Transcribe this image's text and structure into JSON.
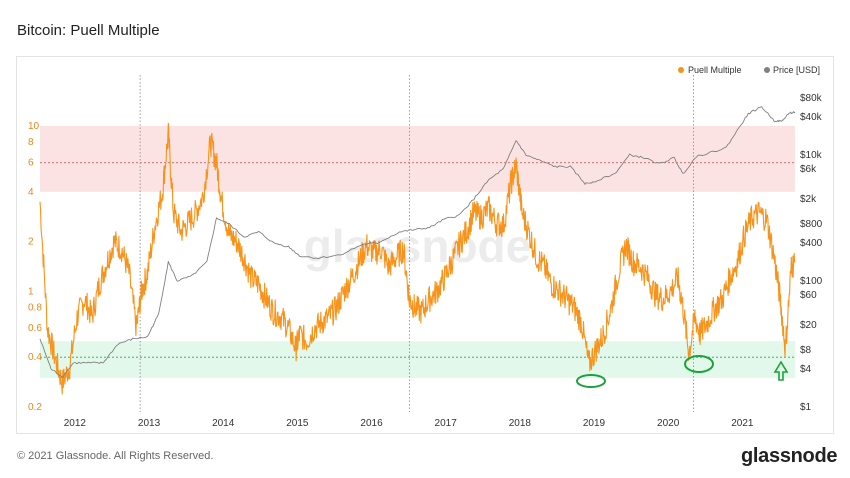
{
  "header": {
    "title": "Bitcoin: Puell Multiple"
  },
  "footer": {
    "copyright": "© 2021 Glassnode. All Rights Reserved.",
    "brand": "glassnode"
  },
  "watermark": "glassnode",
  "colors": {
    "puell": "#f7931a",
    "price": "#808080",
    "top_band": "#fbd9d9",
    "bottom_band": "#d8f5e3",
    "marker": "#1aa33a"
  },
  "chart_data": {
    "type": "line",
    "x_range": [
      2011.55,
      2021.73
    ],
    "xticks": [
      "2012",
      "2013",
      "2014",
      "2015",
      "2016",
      "2017",
      "2018",
      "2019",
      "2020",
      "2021"
    ],
    "y_left_ticks": [
      "10",
      "8",
      "6",
      "4",
      "2",
      "1",
      "0.8",
      "0.6",
      "0.4",
      "0.2"
    ],
    "y_left_scale": "log",
    "y_left_range": [
      0.2,
      10
    ],
    "y_right_ticks": [
      "$80k",
      "$40k",
      "$10k",
      "$6k",
      "$2k",
      "$800",
      "$400",
      "$100",
      "$60",
      "$20",
      "$8",
      "$4",
      "$1"
    ],
    "y_right_scale": "log",
    "y_right_range": [
      1,
      80000
    ],
    "legend": [
      {
        "name": "Puell Multiple",
        "color": "#f7931a"
      },
      {
        "name": "Price [USD]",
        "color": "#808080"
      }
    ],
    "legend_position": "top-right",
    "bands": [
      {
        "name": "top",
        "from": 4,
        "to": 10,
        "color": "#fbd9d9"
      },
      {
        "name": "bottom",
        "from": 0.3,
        "to": 0.5,
        "color": "#d8f5e3"
      }
    ],
    "reference_lines": [
      6,
      0.4
    ],
    "halving_lines": [
      2012.9,
      2016.53,
      2020.36
    ],
    "series": [
      {
        "name": "Puell Multiple",
        "x": [
          2011.55,
          2011.65,
          2011.75,
          2011.85,
          2011.95,
          2012.05,
          2012.15,
          2012.25,
          2012.35,
          2012.45,
          2012.55,
          2012.65,
          2012.75,
          2012.85,
          2012.92,
          2013.0,
          2013.1,
          2013.2,
          2013.28,
          2013.35,
          2013.45,
          2013.55,
          2013.65,
          2013.75,
          2013.85,
          2013.93,
          2014.0,
          2014.1,
          2014.2,
          2014.3,
          2014.4,
          2014.5,
          2014.6,
          2014.7,
          2014.8,
          2014.9,
          2015.0,
          2015.05,
          2015.15,
          2015.25,
          2015.35,
          2015.45,
          2015.55,
          2015.65,
          2015.75,
          2015.85,
          2015.95,
          2016.05,
          2016.15,
          2016.25,
          2016.35,
          2016.45,
          2016.53,
          2016.6,
          2016.7,
          2016.8,
          2016.9,
          2017.0,
          2017.1,
          2017.2,
          2017.3,
          2017.4,
          2017.5,
          2017.6,
          2017.7,
          2017.8,
          2017.9,
          2017.97,
          2018.05,
          2018.15,
          2018.25,
          2018.35,
          2018.45,
          2018.55,
          2018.65,
          2018.75,
          2018.85,
          2018.95,
          2019.05,
          2019.15,
          2019.25,
          2019.35,
          2019.45,
          2019.55,
          2019.65,
          2019.75,
          2019.85,
          2019.95,
          2020.05,
          2020.15,
          2020.22,
          2020.3,
          2020.38,
          2020.45,
          2020.55,
          2020.65,
          2020.75,
          2020.85,
          2020.95,
          2021.05,
          2021.15,
          2021.25,
          2021.35,
          2021.45,
          2021.53,
          2021.6,
          2021.68,
          2021.73
        ],
        "values": [
          3.5,
          0.6,
          0.4,
          0.28,
          0.35,
          0.7,
          0.9,
          0.7,
          1.1,
          1.5,
          2.0,
          1.8,
          1.3,
          0.6,
          1.0,
          1.3,
          2.5,
          4.0,
          9.0,
          3.0,
          2.3,
          2.6,
          3.0,
          3.8,
          8.0,
          6.0,
          3.5,
          2.2,
          2.0,
          1.6,
          1.2,
          1.1,
          0.9,
          0.75,
          0.7,
          0.6,
          0.45,
          0.55,
          0.5,
          0.6,
          0.65,
          0.7,
          0.8,
          1.0,
          1.2,
          1.5,
          1.9,
          1.7,
          1.8,
          1.4,
          1.6,
          1.8,
          0.9,
          0.8,
          0.75,
          0.9,
          1.0,
          1.2,
          1.5,
          1.9,
          2.3,
          3.0,
          2.8,
          3.2,
          2.6,
          2.5,
          4.5,
          5.8,
          3.0,
          2.2,
          1.6,
          1.4,
          1.1,
          1.0,
          0.9,
          0.8,
          0.65,
          0.36,
          0.45,
          0.55,
          0.8,
          1.3,
          1.9,
          1.5,
          1.4,
          1.2,
          0.95,
          0.9,
          1.0,
          1.2,
          0.8,
          0.42,
          0.7,
          0.55,
          0.65,
          0.8,
          0.9,
          1.2,
          1.5,
          2.2,
          2.8,
          3.0,
          2.7,
          1.6,
          0.9,
          0.45,
          1.4,
          1.5
        ]
      },
      {
        "name": "Price [USD]",
        "x": [
          2011.55,
          2011.7,
          2011.85,
          2012.0,
          2012.2,
          2012.4,
          2012.6,
          2012.8,
          2013.0,
          2013.15,
          2013.28,
          2013.4,
          2013.6,
          2013.8,
          2013.93,
          2014.1,
          2014.3,
          2014.5,
          2014.7,
          2014.9,
          2015.05,
          2015.3,
          2015.6,
          2015.9,
          2016.1,
          2016.4,
          2016.6,
          2016.8,
          2017.0,
          2017.2,
          2017.4,
          2017.6,
          2017.8,
          2017.97,
          2018.1,
          2018.3,
          2018.5,
          2018.7,
          2018.9,
          2019.0,
          2019.3,
          2019.5,
          2019.7,
          2019.9,
          2020.1,
          2020.22,
          2020.4,
          2020.6,
          2020.8,
          2021.0,
          2021.1,
          2021.28,
          2021.45,
          2021.55,
          2021.65,
          2021.73
        ],
        "values": [
          12,
          4,
          3,
          5,
          5,
          5,
          10,
          12,
          13,
          30,
          200,
          100,
          120,
          200,
          1000,
          800,
          500,
          600,
          400,
          350,
          250,
          230,
          260,
          380,
          400,
          600,
          650,
          700,
          950,
          1100,
          2000,
          4000,
          6000,
          17000,
          10000,
          8000,
          6500,
          6500,
          3500,
          3700,
          5000,
          10000,
          9000,
          7200,
          9000,
          5000,
          9500,
          11000,
          13000,
          30000,
          45000,
          58000,
          35000,
          34000,
          46000,
          48000
        ]
      }
    ]
  }
}
